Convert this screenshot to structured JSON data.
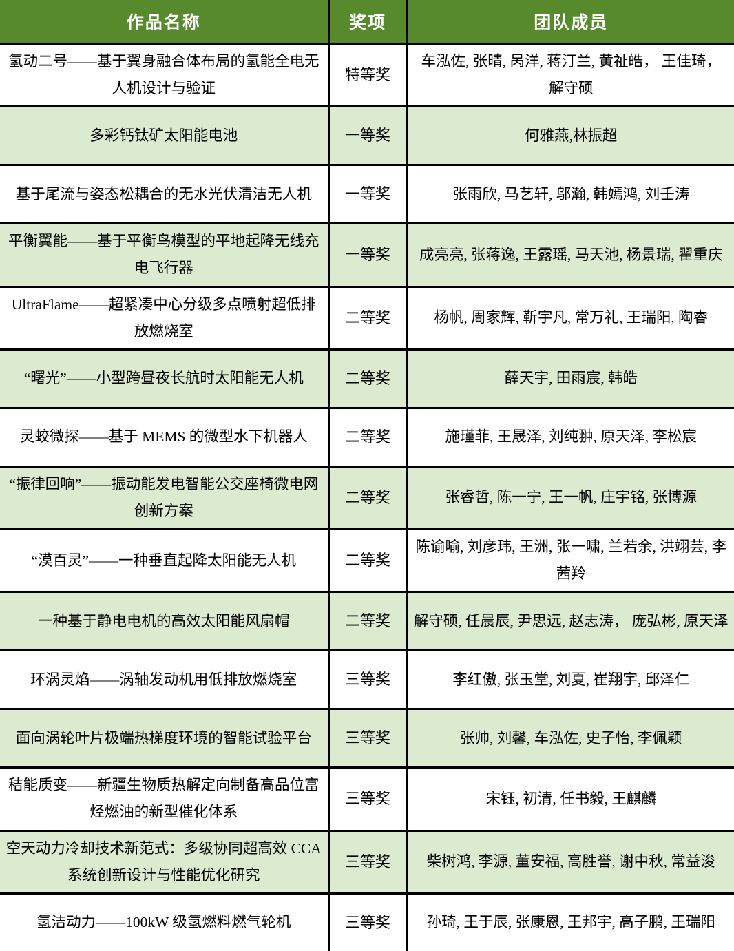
{
  "colors": {
    "header_bg": "#57892D",
    "header_text": "#FFFFFF",
    "row_alt_bg": "#DCEACF",
    "border": "#000000"
  },
  "table": {
    "headers": {
      "work": "作品名称",
      "award": "奖项",
      "members": "团队成员"
    },
    "rows": [
      {
        "work": "氢动二号——基于翼身融合体布局的氢能全电无人机设计与验证",
        "award": "特等奖",
        "members": "车泓佐, 张晴, 呙洋, 蒋汀兰, 黄祉皓， 王佳琦， 解守硕",
        "shaded": false
      },
      {
        "work": "多彩钙钛矿太阳能电池",
        "award": "一等奖",
        "members": "何雅燕,林振超",
        "shaded": true
      },
      {
        "work": "基于尾流与姿态松耦合的无水光伏清洁无人机",
        "award": "一等奖",
        "members": "张雨欣, 马艺轩, 邬瀚, 韩嫣鸿, 刘壬涛",
        "shaded": false
      },
      {
        "work": "平衡翼能——基于平衡鸟模型的平地起降无线充电飞行器",
        "award": "一等奖",
        "members": "成亮亮, 张蒋逸, 王露瑶, 马天池, 杨景瑞, 翟重庆",
        "shaded": true
      },
      {
        "work": "UltraFlame——超紧凑中心分级多点喷射超低排放燃烧室",
        "award": "二等奖",
        "members": "杨帆, 周家辉, 靳宇凡, 常万礼, 王瑞阳, 陶睿",
        "shaded": false
      },
      {
        "work": "“曙光”——小型跨昼夜长航时太阳能无人机",
        "award": "二等奖",
        "members": "薛天宇, 田雨宸, 韩皓",
        "shaded": true
      },
      {
        "work": "灵蛟微探——基于 MEMS 的微型水下机器人",
        "award": "二等奖",
        "members": "施瑾菲, 王晟泽, 刘纯翀, 原天泽, 李松宸",
        "shaded": false
      },
      {
        "work": "“振律回响”——振动能发电智能公交座椅微电网创新方案",
        "award": "二等奖",
        "members": "张睿哲, 陈一宁, 王一帆, 庄宇铭, 张博源",
        "shaded": true
      },
      {
        "work": "“漠百灵”——一种垂直起降太阳能无人机",
        "award": "二等奖",
        "members": "陈谕喻, 刘彦玮, 王洲, 张一啸, 兰若余, 洪翊芸, 李茜羚",
        "shaded": false
      },
      {
        "work": "一种基于静电电机的高效太阳能风扇帽",
        "award": "二等奖",
        "members": "解守硕, 任晨辰, 尹思远, 赵志涛， 庞弘彬, 原天泽",
        "shaded": true
      },
      {
        "work": "环涡灵焰——涡轴发动机用低排放燃烧室",
        "award": "三等奖",
        "members": "李红傲, 张玉堂, 刘夏, 崔翔宇, 邱泽仁",
        "shaded": false
      },
      {
        "work": "面向涡轮叶片极端热梯度环境的智能试验平台",
        "award": "三等奖",
        "members": "张帅, 刘馨, 车泓佐, 史子怡, 李佩颖",
        "shaded": true
      },
      {
        "work": "秸能质变——新疆生物质热解定向制备高品位富烃燃油的新型催化体系",
        "award": "三等奖",
        "members": "宋钰, 初清, 任书毅, 王麒麟",
        "shaded": false
      },
      {
        "work": "空天动力冷却技术新范式：多级协同超高效 CCA 系统创新设计与性能优化研究",
        "award": "三等奖",
        "members": "柴树鸿, 李源, 董安福, 高胜誉, 谢中秋, 常益浚",
        "shaded": true
      },
      {
        "work": "氢洁动力——100kW 级氢燃料燃气轮机",
        "award": "三等奖",
        "members": "孙琦, 王于辰, 张康恩, 王邦宇, 高子鹏, 王瑞阳",
        "shaded": false
      }
    ]
  }
}
